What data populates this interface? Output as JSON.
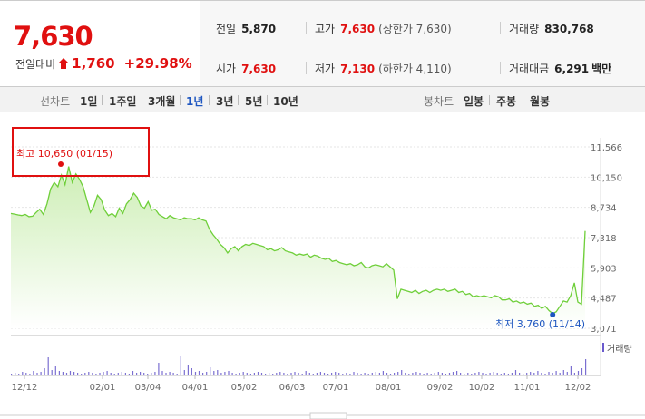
{
  "quote": {
    "price": "7,630",
    "change_label": "전일대비",
    "change_amount": "1,760",
    "change_percent": "+29.98%",
    "prev_close_label": "전일",
    "prev_close": "5,870",
    "high_label": "고가",
    "high": "7,630",
    "upper_limit": "(상한가 7,630)",
    "volume_label": "거래량",
    "volume": "830,768",
    "open_label": "시가",
    "open": "7,630",
    "low_label": "저가",
    "low": "7,130",
    "lower_limit": "(하한가 4,110)",
    "amount_label": "거래대금",
    "amount": "6,291",
    "amount_unit": "백만"
  },
  "period_tabs": {
    "label": "선차트",
    "items": [
      "1일",
      "1주일",
      "3개월",
      "1년",
      "3년",
      "5년",
      "10년"
    ],
    "selected": "1년"
  },
  "candle_tabs": {
    "label": "봉차트",
    "items": [
      "일봉",
      "주봉",
      "월봉"
    ]
  },
  "chart": {
    "max_label": "최고 10,650 (01/15)",
    "min_label": "최저 3,760 (11/14)",
    "volume_legend": "거래량",
    "colors": {
      "line": "#6fcf3a",
      "fill_top": "#cdeeb5",
      "max": "#e01010",
      "min": "#1e56c0",
      "volume": "#6a5acd"
    }
  },
  "chart_data": {
    "type": "area",
    "y_ticks": [
      "11,566",
      "10,150",
      "8,734",
      "7,318",
      "5,903",
      "4,487",
      "3,071"
    ],
    "x_ticks": [
      "12/12",
      "02/01",
      "03/04",
      "04/01",
      "05/02",
      "06/03",
      "07/01",
      "08/01",
      "09/02",
      "10/02",
      "11/01",
      "12/02"
    ],
    "ylim": [
      3071,
      11566
    ],
    "values": [
      8450,
      8420,
      8380,
      8350,
      8400,
      8300,
      8320,
      8500,
      8650,
      8400,
      8900,
      9600,
      9900,
      9700,
      10250,
      9800,
      10650,
      9900,
      10300,
      10050,
      9700,
      9100,
      8500,
      8800,
      9300,
      9100,
      8600,
      8350,
      8450,
      8300,
      8700,
      8450,
      8900,
      9100,
      9400,
      9200,
      8800,
      8700,
      9000,
      8600,
      8650,
      8400,
      8300,
      8200,
      8350,
      8250,
      8200,
      8150,
      8250,
      8200,
      8200,
      8150,
      8250,
      8150,
      8100,
      7700,
      7450,
      7250,
      7000,
      6850,
      6600,
      6800,
      6900,
      6700,
      6900,
      7000,
      6950,
      7050,
      7000,
      6950,
      6900,
      6750,
      6800,
      6700,
      6750,
      6850,
      6700,
      6650,
      6600,
      6500,
      6550,
      6500,
      6550,
      6400,
      6500,
      6450,
      6350,
      6300,
      6350,
      6200,
      6250,
      6150,
      6100,
      6050,
      6100,
      6000,
      6050,
      6150,
      5950,
      5900,
      6000,
      6050,
      6000,
      5950,
      6100,
      5950,
      5800,
      4450,
      4900,
      4850,
      4800,
      4750,
      4850,
      4700,
      4800,
      4850,
      4750,
      4850,
      4900,
      4850,
      4900,
      4800,
      4850,
      4900,
      4750,
      4800,
      4650,
      4700,
      4550,
      4600,
      4550,
      4600,
      4550,
      4500,
      4600,
      4550,
      4400,
      4400,
      4450,
      4300,
      4350,
      4250,
      4300,
      4200,
      4250,
      4100,
      4150,
      4000,
      4100,
      3900,
      3760,
      3850,
      4100,
      4350,
      4300,
      4600,
      5200,
      4300,
      4200,
      7630
    ]
  }
}
